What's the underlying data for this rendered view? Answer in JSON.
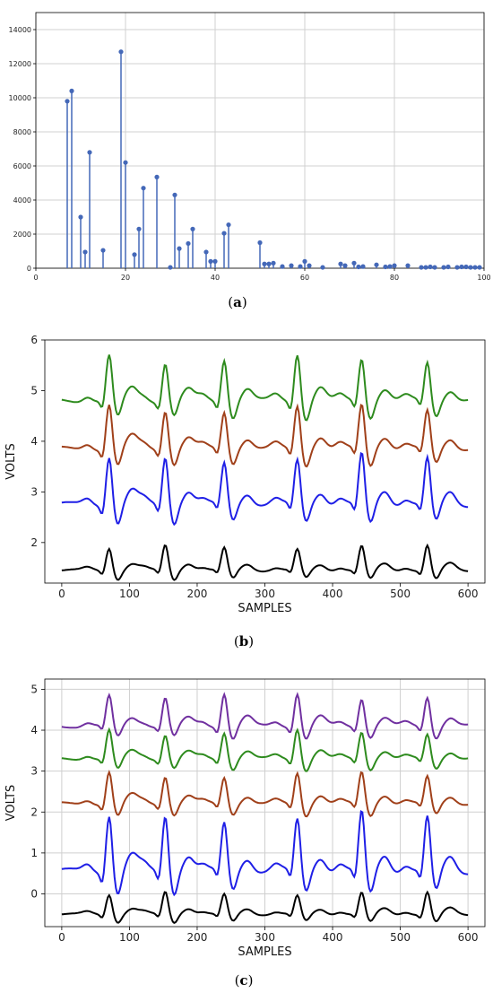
{
  "chart_data": [
    {
      "type": "stem",
      "panel_label": "a",
      "title": "",
      "xlabel": "",
      "ylabel": "",
      "xlim": [
        0,
        100
      ],
      "ylim": [
        0,
        15000
      ],
      "xticks": [
        0,
        20,
        40,
        60,
        80,
        100
      ],
      "yticks": [
        0,
        2000,
        4000,
        6000,
        8000,
        10000,
        12000,
        14000
      ],
      "grid": true,
      "color": "#4468b8",
      "x": [
        7,
        8,
        10,
        11,
        12,
        15,
        19,
        20,
        22,
        23,
        24,
        27,
        30,
        31,
        32,
        34,
        35,
        38,
        39,
        40,
        42,
        43,
        50,
        51,
        52,
        53,
        55,
        57,
        59,
        60,
        61,
        64,
        68,
        69,
        71,
        72,
        73,
        76,
        78,
        79,
        80,
        83,
        86,
        87,
        88,
        89,
        91,
        92,
        94,
        95,
        96,
        97,
        98,
        99
      ],
      "y": [
        9800,
        10400,
        3000,
        950,
        6800,
        1050,
        12700,
        6200,
        800,
        2300,
        4700,
        5350,
        50,
        4300,
        1150,
        1450,
        2300,
        950,
        400,
        400,
        2050,
        2550,
        1500,
        250,
        250,
        300,
        100,
        150,
        100,
        400,
        150,
        50,
        250,
        150,
        300,
        80,
        100,
        200,
        80,
        100,
        150,
        150,
        50,
        50,
        80,
        50,
        50,
        80,
        50,
        80,
        80,
        50,
        50,
        50
      ]
    },
    {
      "type": "line",
      "panel_label": "b",
      "title": "",
      "xlabel": "SAMPLES",
      "ylabel": "VOLTS",
      "xlim": [
        -25,
        625
      ],
      "ylim": [
        1.2,
        6.0
      ],
      "xticks": [
        0,
        100,
        200,
        300,
        400,
        500,
        600
      ],
      "yticks": [
        2,
        3,
        4,
        5,
        6
      ],
      "grid": false,
      "beats": [
        70,
        153,
        240,
        348,
        443,
        540
      ],
      "series": [
        {
          "color": "#000000",
          "baseline": 1.45,
          "amp": 0.5
        },
        {
          "color": "#1f1fe6",
          "baseline": 2.75,
          "amp": 1.0
        },
        {
          "color": "#a0401a",
          "baseline": 3.85,
          "amp": 0.9
        },
        {
          "color": "#2e8b1e",
          "baseline": 4.8,
          "amp": 0.95
        }
      ]
    },
    {
      "type": "line",
      "panel_label": "c",
      "title": "",
      "xlabel": "SAMPLES",
      "ylabel": "VOLTS",
      "xlim": [
        -25,
        625
      ],
      "ylim": [
        -0.8,
        5.25
      ],
      "xticks": [
        0,
        100,
        200,
        300,
        400,
        500,
        600
      ],
      "yticks": [
        0,
        1,
        2,
        3,
        4,
        5
      ],
      "grid": true,
      "beats": [
        70,
        153,
        240,
        348,
        443,
        540
      ],
      "series": [
        {
          "color": "#000000",
          "baseline": -0.5,
          "amp": 0.55
        },
        {
          "color": "#1f1fe6",
          "baseline": 0.55,
          "amp": 1.45
        },
        {
          "color": "#a0401a",
          "baseline": 2.2,
          "amp": 0.8
        },
        {
          "color": "#2e8b1e",
          "baseline": 3.3,
          "amp": 0.75
        },
        {
          "color": "#7030a0",
          "baseline": 4.1,
          "amp": 0.85
        }
      ]
    }
  ]
}
